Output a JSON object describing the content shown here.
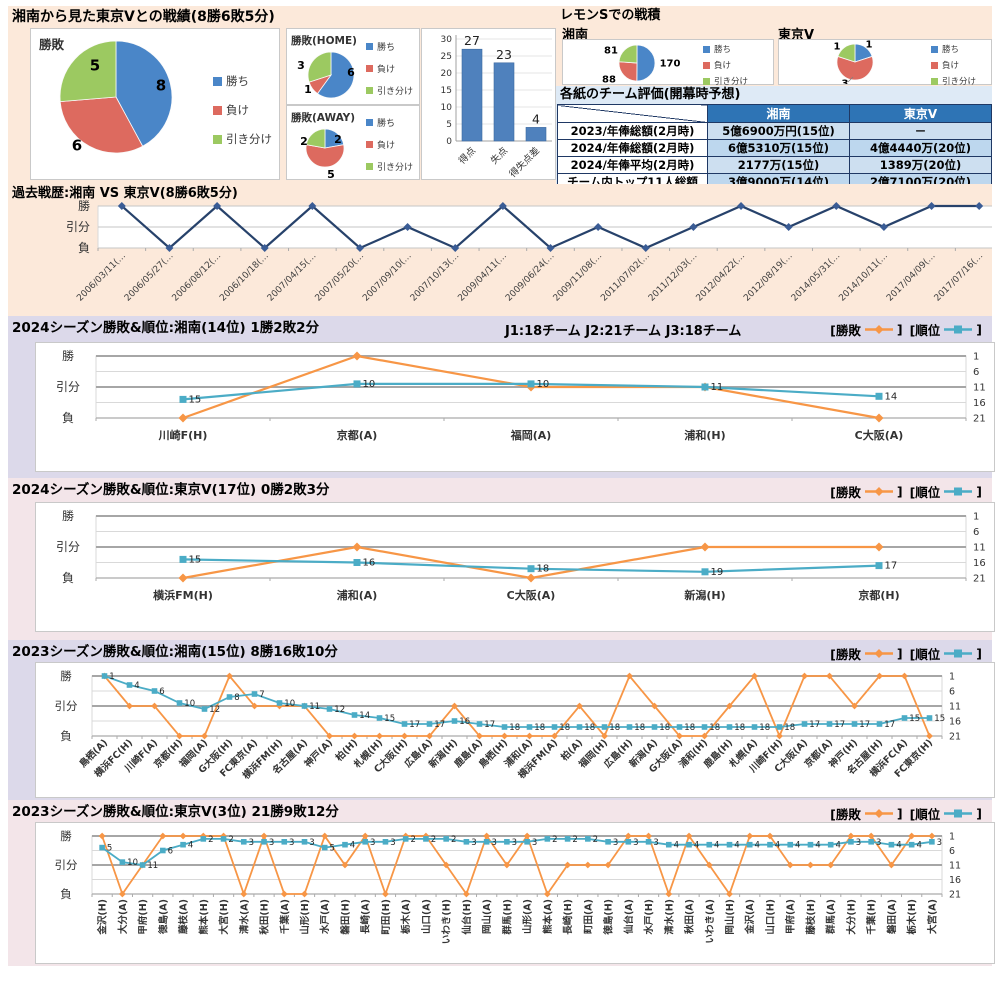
{
  "colors": {
    "win_blue": "#4A86C8",
    "lose_red": "#DD6A5F",
    "draw_green": "#9CC961",
    "bar_blue": "#4F81BD",
    "history_line": "#27426B",
    "history_marker": "#3A5C95",
    "result_orange": "#F79646",
    "rank_teal": "#4BACC6",
    "band_peach": "#FCE9DA",
    "band_lavender": "#DCD9EA",
    "band_pink": "#F3E5E9",
    "table_header_blue": "#2E74B5",
    "table_cell_blue": "#BDD7EE",
    "table_cell_blue_light": "#CDDFF0",
    "table_band_blue": "#DEEAF6"
  },
  "head_to_head_title": "湘南から見た東京Vとの戦績(8勝6敗5分)",
  "result_legend": [
    "勝ち",
    "負け",
    "引き分け"
  ],
  "lemon_title": "レモンSでの戦積",
  "ratings_table": {
    "title": "各紙のチーム評価(開幕時予想)",
    "columns": [
      "湘南",
      "東京V"
    ],
    "rows": [
      {
        "label": "2023/年俸総額(2月時)",
        "shonan": "5億6900万円(15位)",
        "tokyo": "－"
      },
      {
        "label": "2024/年俸総額(2月時)",
        "shonan": "6億5310万(15位)",
        "tokyo": "4億4440万(20位)"
      },
      {
        "label": "2024/年俸平均(2月時)",
        "shonan": "2177万(15位)",
        "tokyo": "1389万(20位)"
      },
      {
        "label": "チーム内トップ11人総額",
        "shonan": "3億9000万(14位)",
        "tokyo": "2億7100万(20位)"
      }
    ]
  },
  "season_legend": [
    "[勝敗",
    "]",
    "[順位",
    "]"
  ],
  "chart_data": {
    "overall_pie": {
      "type": "pie",
      "title": "勝敗",
      "labels": [
        "勝ち",
        "負け",
        "引き分け"
      ],
      "values": [
        8,
        6,
        5
      ]
    },
    "home_pie": {
      "type": "pie",
      "title": "勝敗(HOME)",
      "labels": [
        "勝ち",
        "負け",
        "引き分け"
      ],
      "values": [
        6,
        1,
        3
      ]
    },
    "away_pie": {
      "type": "pie",
      "title": "勝敗(AWAY)",
      "labels": [
        "勝ち",
        "負け",
        "引き分け"
      ],
      "values": [
        2,
        5,
        2
      ]
    },
    "goals_bar": {
      "type": "bar",
      "categories": [
        "得点",
        "失点",
        "得失点差"
      ],
      "values": [
        27,
        23,
        4
      ],
      "yticks": [
        0,
        5,
        10,
        15,
        20,
        25,
        30
      ],
      "ylim": [
        0,
        30
      ]
    },
    "lemon_pies": [
      {
        "type": "pie",
        "team": "湘南",
        "labels": [
          "勝ち",
          "負け",
          "引き分け"
        ],
        "values": [
          170,
          88,
          81
        ]
      },
      {
        "type": "pie",
        "team": "東京V",
        "labels": [
          "勝ち",
          "負け",
          "引き分け"
        ],
        "values": [
          1,
          3,
          1
        ]
      }
    ],
    "history": {
      "type": "line",
      "title": "過去戦歴:湘南 VS 東京V(8勝6敗5分)",
      "ylabels": [
        "勝",
        "引分",
        "負"
      ],
      "x": [
        "2006/03/11(…",
        "2006/05/27(…",
        "2006/08/12(…",
        "2006/10/18(…",
        "2007/04/15(…",
        "2007/05/20(…",
        "2007/09/10(…",
        "2007/10/13(…",
        "2009/04/11(…",
        "2009/06/24(…",
        "2009/11/08(…",
        "2011/07/02(…",
        "2011/12/03(…",
        "2012/04/22(…",
        "2012/08/19(…",
        "2014/05/31(…",
        "2014/10/11(…",
        "2017/04/09(…",
        "2017/07/16(…"
      ],
      "results": [
        "勝",
        "負",
        "勝",
        "負",
        "勝",
        "負",
        "引分",
        "負",
        "勝",
        "負",
        "引分",
        "負",
        "引分",
        "勝",
        "引分",
        "勝",
        "引分",
        "勝",
        "勝"
      ]
    },
    "seasons": [
      {
        "type": "line",
        "title": "2024シーズン勝敗&順位:湘南(14位) 1勝2敗2分",
        "note": "J1:18チーム  J2:21チーム  J3:18チーム",
        "ylabels": [
          "勝",
          "引分",
          "負"
        ],
        "right_ticks": [
          1,
          6,
          11,
          16,
          21
        ],
        "opponents": [
          "川崎F(H)",
          "京都(A)",
          "福岡(A)",
          "浦和(H)",
          "C大阪(A)"
        ],
        "results": [
          "負",
          "勝",
          "分",
          "分",
          "負"
        ],
        "ranks": [
          15,
          10,
          10,
          11,
          14
        ]
      },
      {
        "type": "line",
        "title": "2024シーズン勝敗&順位:東京V(17位) 0勝2敗3分",
        "note": "",
        "ylabels": [
          "勝",
          "引分",
          "負"
        ],
        "right_ticks": [
          1,
          6,
          11,
          16,
          21
        ],
        "opponents": [
          "横浜FM(H)",
          "浦和(A)",
          "C大阪(A)",
          "新潟(H)",
          "京都(H)"
        ],
        "results": [
          "負",
          "分",
          "負",
          "分",
          "分"
        ],
        "ranks": [
          15,
          16,
          18,
          19,
          17
        ]
      },
      {
        "type": "line",
        "title": "2023シーズン勝敗&順位:湘南(15位) 8勝16敗10分",
        "note": "",
        "ylabels": [
          "勝",
          "引分",
          "負"
        ],
        "right_ticks": [
          1,
          6,
          11,
          16,
          21
        ],
        "opponents": [
          "鳥栖(A)",
          "横浜FC(H)",
          "川崎F(A)",
          "京都(H)",
          "福岡(A)",
          "G大阪(H)",
          "FC東京(A)",
          "横浜FM(H)",
          "名古屋(A)",
          "神戸(A)",
          "柏(H)",
          "札幌(H)",
          "C大阪(H)",
          "広島(A)",
          "新潟(H)",
          "鹿島(A)",
          "鳥栖(H)",
          "浦和(A)",
          "横浜FM(A)",
          "柏(A)",
          "福岡(H)",
          "広島(H)",
          "新潟(A)",
          "G大阪(A)",
          "浦和(H)",
          "鹿島(H)",
          "札幌(A)",
          "川崎F(H)",
          "C大阪(A)",
          "京都(A)",
          "神戸(H)",
          "名古屋(H)",
          "横浜FC(A)",
          "FC東京(H)"
        ],
        "results": [
          "勝",
          "分",
          "分",
          "負",
          "負",
          "勝",
          "分",
          "分",
          "分",
          "負",
          "負",
          "負",
          "負",
          "負",
          "分",
          "負",
          "負",
          "負",
          "負",
          "分",
          "負",
          "勝",
          "分",
          "負",
          "負",
          "分",
          "勝",
          "負",
          "勝",
          "勝",
          "分",
          "勝",
          "勝",
          "負"
        ],
        "ranks": [
          1,
          4,
          6,
          10,
          12,
          8,
          7,
          10,
          11,
          12,
          14,
          15,
          17,
          17,
          16,
          17,
          18,
          18,
          18,
          18,
          18,
          18,
          18,
          18,
          18,
          18,
          18,
          18,
          17,
          17,
          17,
          17,
          15,
          15
        ]
      },
      {
        "type": "line",
        "title": "2023シーズン勝敗&順位:東京V(3位) 21勝9敗12分",
        "note": "",
        "ylabels": [
          "勝",
          "引分",
          "負"
        ],
        "right_ticks": [
          1,
          6,
          11,
          16,
          21
        ],
        "opponents": [
          "金沢(H)",
          "大分(A)",
          "甲府(H)",
          "徳島(A)",
          "藤枝(A)",
          "熊本(H)",
          "大宮(H)",
          "清水(A)",
          "秋田(H)",
          "千葉(A)",
          "山形(H)",
          "水戸(A)",
          "磐田(H)",
          "長崎(A)",
          "町田(H)",
          "栃木(A)",
          "山口(A)",
          "いわき(H)",
          "仙台(H)",
          "岡山(A)",
          "群馬(H)",
          "山形(A)",
          "熊本(A)",
          "長崎(H)",
          "町田(A)",
          "徳島(H)",
          "仙台(A)",
          "水戸(H)",
          "清水(H)",
          "秋田(A)",
          "いわき(A)",
          "岡山(H)",
          "金沢(A)",
          "山口(H)",
          "甲府(A)",
          "藤枝(H)",
          "群馬(A)",
          "大分(H)",
          "千葉(H)",
          "磐田(A)",
          "栃木(H)",
          "大宮(A)"
        ],
        "results": [
          "勝",
          "負",
          "分",
          "勝",
          "勝",
          "勝",
          "勝",
          "負",
          "勝",
          "負",
          "負",
          "勝",
          "分",
          "勝",
          "負",
          "勝",
          "勝",
          "分",
          "負",
          "勝",
          "分",
          "勝",
          "負",
          "分",
          "分",
          "分",
          "勝",
          "勝",
          "負",
          "勝",
          "分",
          "負",
          "勝",
          "勝",
          "分",
          "分",
          "分",
          "勝",
          "勝",
          "分",
          "勝",
          "勝"
        ],
        "ranks": [
          5,
          10,
          11,
          6,
          4,
          2,
          2,
          3,
          3,
          3,
          3,
          5,
          4,
          3,
          3,
          2,
          2,
          2,
          3,
          3,
          3,
          3,
          2,
          2,
          2,
          3,
          3,
          3,
          4,
          4,
          4,
          4,
          4,
          4,
          4,
          4,
          4,
          3,
          3,
          4,
          4,
          3
        ]
      }
    ]
  }
}
